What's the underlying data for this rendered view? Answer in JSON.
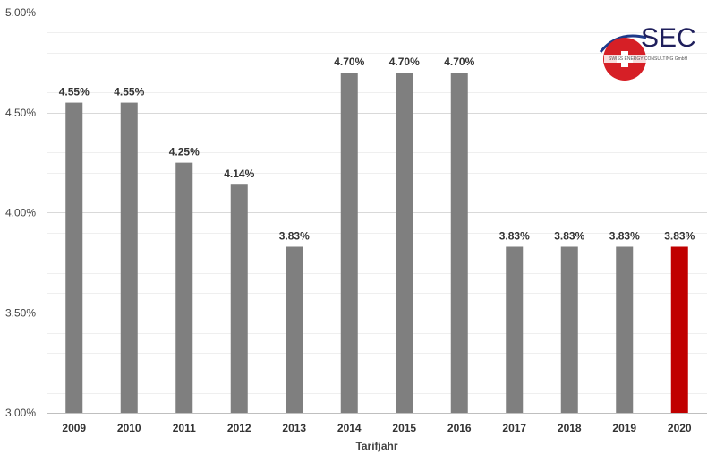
{
  "logo": {
    "name": "SEC",
    "subtitle": "SWISS ENERGY CONSULTING GmbH"
  },
  "chart_data": {
    "type": "bar",
    "title": "",
    "xlabel": "Tarifjahr",
    "ylabel": "",
    "ylim": [
      3.0,
      5.0
    ],
    "yticks": [
      3.0,
      3.5,
      4.0,
      4.5,
      5.0
    ],
    "ytick_labels": [
      "3.00%",
      "3.50%",
      "4.00%",
      "4.50%",
      "5.00%"
    ],
    "grid": true,
    "categories": [
      "2009",
      "2010",
      "2011",
      "2012",
      "2013",
      "2014",
      "2015",
      "2016",
      "2017",
      "2018",
      "2019",
      "2020"
    ],
    "values": [
      4.55,
      4.55,
      4.25,
      4.14,
      3.83,
      4.7,
      4.7,
      4.7,
      3.83,
      3.83,
      3.83,
      3.83
    ],
    "value_labels": [
      "4.55%",
      "4.55%",
      "4.25%",
      "4.14%",
      "3.83%",
      "4.70%",
      "4.70%",
      "4.70%",
      "3.83%",
      "3.83%",
      "3.83%",
      "3.83%"
    ],
    "colors": {
      "default": "#7f7f7f",
      "highlight": "#c00000",
      "gridline": "#d9d9d9",
      "gridline_minor": "#efefef"
    },
    "highlight_index": 11
  }
}
